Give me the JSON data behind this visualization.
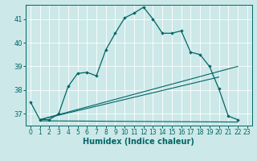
{
  "xlabel": "Humidex (Indice chaleur)",
  "background_color": "#cce8e8",
  "grid_color": "#ffffff",
  "line_color": "#006666",
  "xlim": [
    -0.5,
    23.5
  ],
  "ylim": [
    36.5,
    41.6
  ],
  "yticks": [
    37,
    38,
    39,
    40,
    41
  ],
  "xticks": [
    0,
    1,
    2,
    3,
    4,
    5,
    6,
    7,
    8,
    9,
    10,
    11,
    12,
    13,
    14,
    15,
    16,
    17,
    18,
    19,
    20,
    21,
    22,
    23
  ],
  "main_x": [
    0,
    1,
    2,
    3,
    4,
    5,
    6,
    7,
    8,
    9,
    10,
    11,
    12,
    13,
    14,
    15,
    16,
    17,
    18,
    19,
    20,
    21,
    22
  ],
  "main_y": [
    37.5,
    36.75,
    36.75,
    37.0,
    38.15,
    38.7,
    38.75,
    38.6,
    39.7,
    40.4,
    41.05,
    41.25,
    41.5,
    41.0,
    40.4,
    40.4,
    40.5,
    39.6,
    39.5,
    39.0,
    38.05,
    36.9,
    36.75
  ],
  "line2_x": [
    1,
    22
  ],
  "line2_y": [
    36.75,
    39.0
  ],
  "line3_x": [
    1,
    20
  ],
  "line3_y": [
    36.75,
    38.55
  ],
  "line4_x": [
    1,
    22
  ],
  "line4_y": [
    36.7,
    36.65
  ],
  "xlabel_fontsize": 7,
  "tick_fontsize": 5.5
}
